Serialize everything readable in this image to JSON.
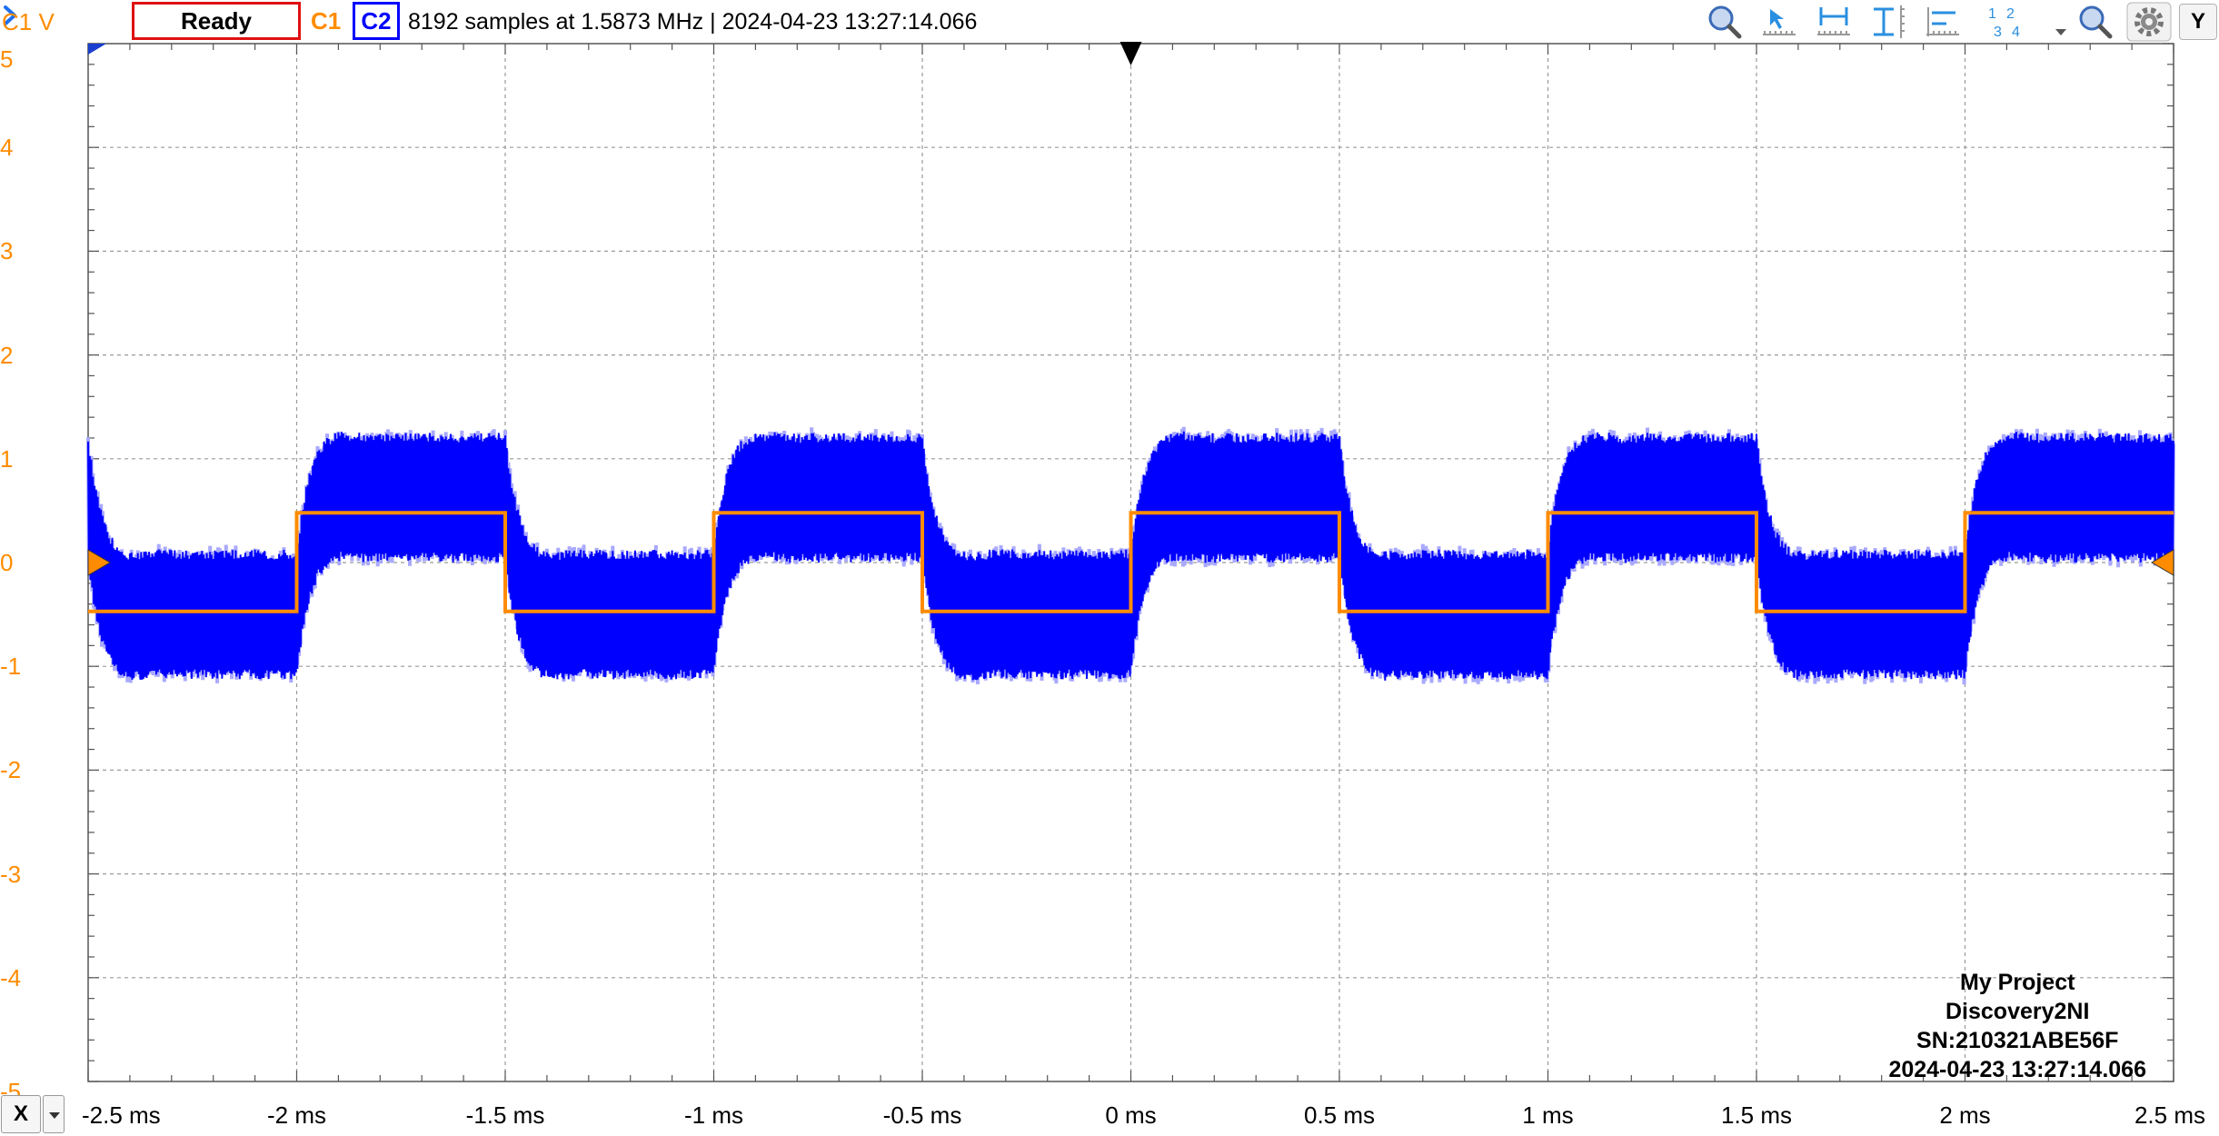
{
  "toolbar": {
    "channel_label": "C1 V",
    "run_state": "Ready",
    "channel1_button": "C1",
    "channel2_button": "C2",
    "acquisition_info": "8192 samples at 1.5873 MHz",
    "timestamp_text": "| 2024-04-23 13:27:14.066",
    "y_button": "Y",
    "tools": [
      "zoom-in-icon",
      "select-arrow-icon",
      "horizontal-measure-icon",
      "vertical-measure-icon",
      "cursor-tool-icon",
      "channel-order-icon",
      "dropdown-arrow-icon",
      "zoom-out-icon",
      "settings-gear-icon"
    ]
  },
  "plot": {
    "y_axis_labels": [
      "5",
      "4",
      "3",
      "2",
      "1",
      "0",
      "-1",
      "-2",
      "-3",
      "-4",
      "-5"
    ],
    "x_axis_labels": [
      "-2.5 ms",
      "-2 ms",
      "-1.5 ms",
      "-1 ms",
      "-0.5 ms",
      "0 ms",
      "0.5 ms",
      "1 ms",
      "1.5 ms",
      "2 ms",
      "2.5 ms"
    ],
    "x_button": "X"
  },
  "chart_data": {
    "type": "line",
    "xlabel": "",
    "ylabel": "C1 V",
    "x_unit": "ms",
    "xlim": [
      -2.5,
      2.5
    ],
    "ylim": [
      -5,
      5
    ],
    "grid": true,
    "trigger_time_ms": 0,
    "series": [
      {
        "name": "C1",
        "color": "#ff8c00",
        "waveform": "square",
        "period_ms": 1.0,
        "high_level": 0.48,
        "low_level": -0.47,
        "rising_edges_ms": [
          -2.0,
          -1.0,
          0.0,
          1.0,
          2.0
        ],
        "falling_edges_ms": [
          -1.5,
          -0.5,
          0.5,
          1.5
        ]
      },
      {
        "name": "C2",
        "color": "#0000ff",
        "waveform": "noisy square response",
        "period_ms": 1.0,
        "high_envelope": [
          0.0,
          1.25
        ],
        "low_envelope": [
          -1.15,
          0.15
        ]
      }
    ]
  },
  "device": {
    "project": "My Project",
    "model": "Discovery2NI",
    "serial": "SN:210321ABE56F",
    "timestamp": "2024-04-23 13:27:14.066"
  }
}
